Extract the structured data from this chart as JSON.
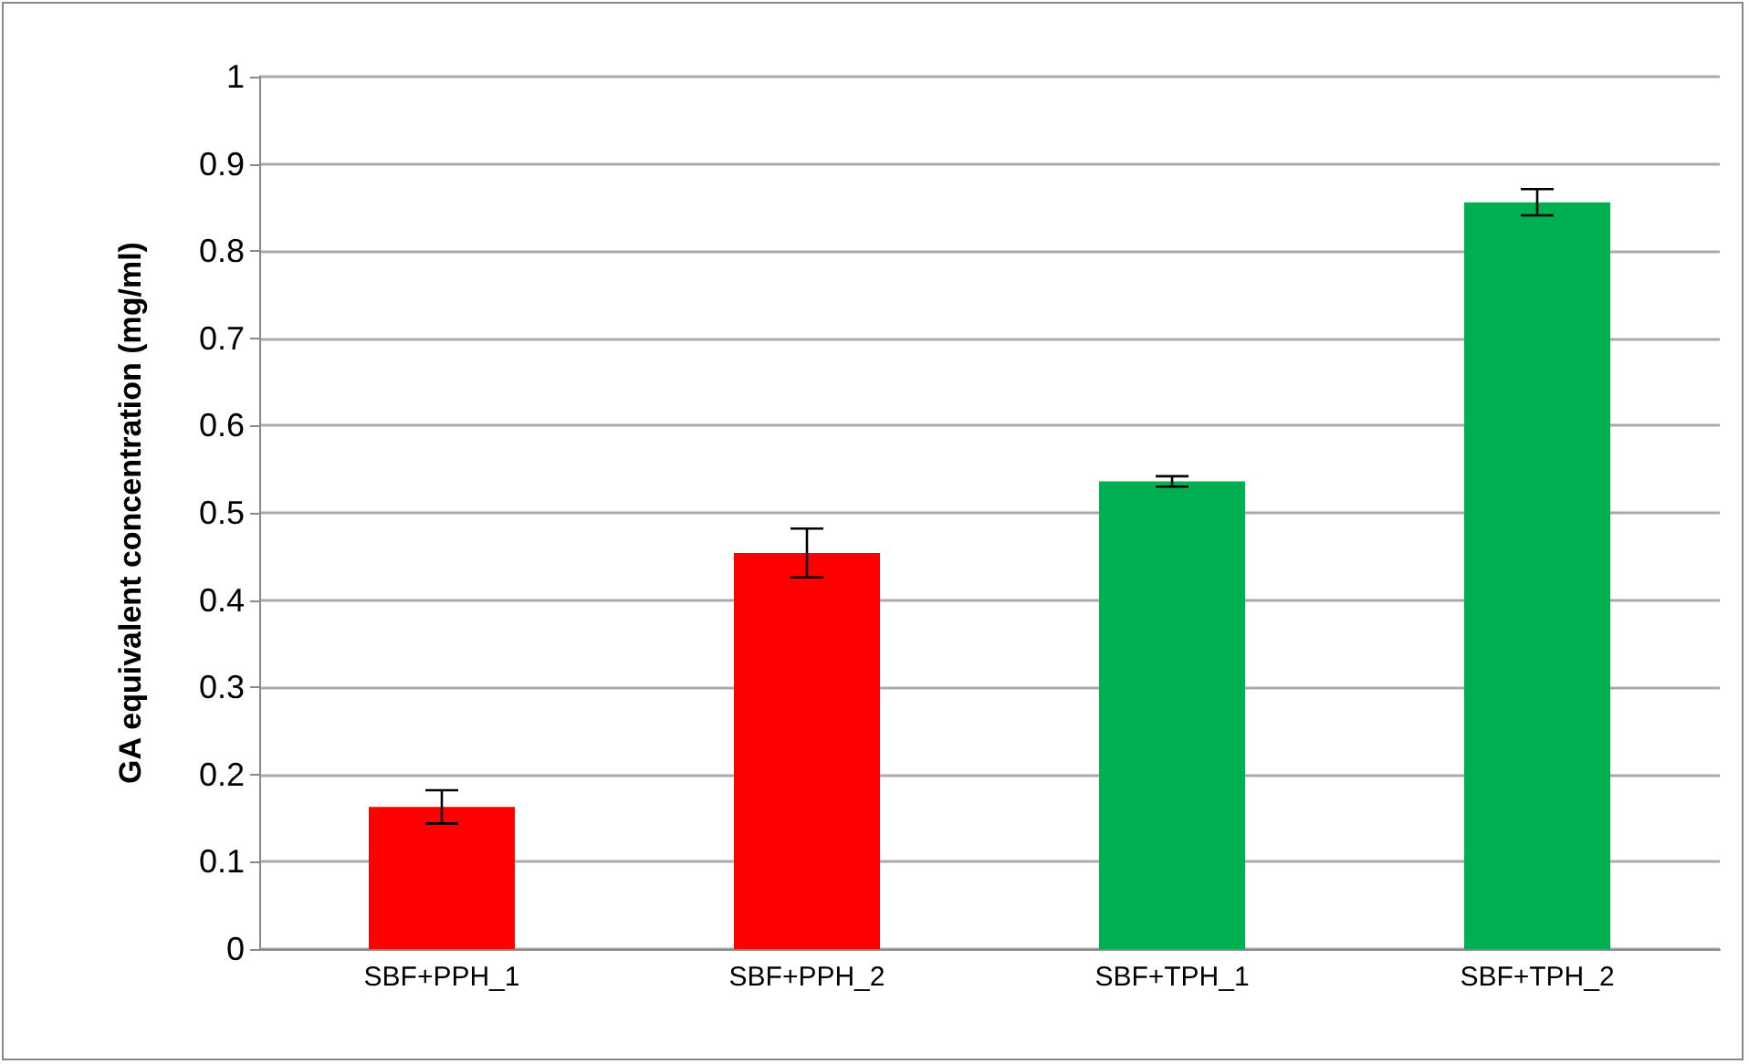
{
  "chart_data": {
    "type": "bar",
    "ylabel": "GA equivalent concentration (mg/ml)",
    "categories": [
      "SBF+PPH_1",
      "SBF+PPH_2",
      "SBF+TPH_1",
      "SBF+TPH_2"
    ],
    "values": [
      0.163,
      0.454,
      0.536,
      0.856
    ],
    "colors": [
      "#ff0000",
      "#ff0000",
      "#00b050",
      "#00b050"
    ],
    "errors": [
      0.019,
      0.028,
      0.006,
      0.015
    ],
    "ylim": [
      0,
      1
    ],
    "yticks": [
      0,
      0.1,
      0.2,
      0.3,
      0.4,
      0.5,
      0.6,
      0.7,
      0.8,
      0.9,
      1
    ],
    "grid": "y"
  }
}
